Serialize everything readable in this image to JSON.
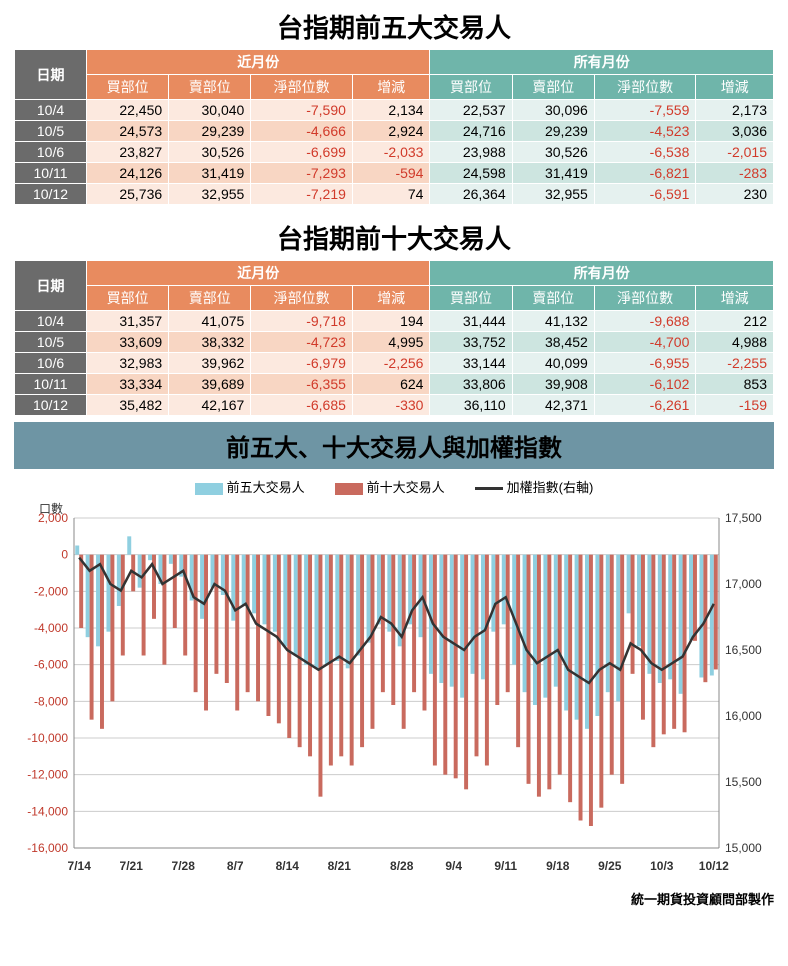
{
  "titles": {
    "t5": "台指期前五大交易人",
    "t10": "台指期前十大交易人",
    "chart": "前五大、十大交易人與加權指數",
    "footer": "統一期貨投資顧問部製作"
  },
  "headers": {
    "date": "日期",
    "near": "近月份",
    "all": "所有月份",
    "buy": "買部位",
    "sell": "賣部位",
    "net": "淨部位數",
    "chg": "增減"
  },
  "table5": [
    {
      "date": "10/4",
      "n": [
        22450,
        30040,
        -7590,
        2134
      ],
      "a": [
        22537,
        30096,
        -7559,
        2173
      ]
    },
    {
      "date": "10/5",
      "n": [
        24573,
        29239,
        -4666,
        2924
      ],
      "a": [
        24716,
        29239,
        -4523,
        3036
      ]
    },
    {
      "date": "10/6",
      "n": [
        23827,
        30526,
        -6699,
        -2033
      ],
      "a": [
        23988,
        30526,
        -6538,
        -2015
      ]
    },
    {
      "date": "10/11",
      "n": [
        24126,
        31419,
        -7293,
        -594
      ],
      "a": [
        24598,
        31419,
        -6821,
        -283
      ]
    },
    {
      "date": "10/12",
      "n": [
        25736,
        32955,
        -7219,
        74
      ],
      "a": [
        26364,
        32955,
        -6591,
        230
      ]
    }
  ],
  "table10": [
    {
      "date": "10/4",
      "n": [
        31357,
        41075,
        -9718,
        194
      ],
      "a": [
        31444,
        41132,
        -9688,
        212
      ]
    },
    {
      "date": "10/5",
      "n": [
        33609,
        38332,
        -4723,
        4995
      ],
      "a": [
        33752,
        38452,
        -4700,
        4988
      ]
    },
    {
      "date": "10/6",
      "n": [
        32983,
        39962,
        -6979,
        -2256
      ],
      "a": [
        33144,
        40099,
        -6955,
        -2255
      ]
    },
    {
      "date": "10/11",
      "n": [
        33334,
        39689,
        -6355,
        624
      ],
      "a": [
        33806,
        39908,
        -6102,
        853
      ]
    },
    {
      "date": "10/12",
      "n": [
        35482,
        42167,
        -6685,
        -330
      ],
      "a": [
        36110,
        42371,
        -6261,
        -159
      ]
    }
  ],
  "chart": {
    "ylabel": "口數",
    "legend": {
      "s5": "前五大交易人",
      "s10": "前十大交易人",
      "idx": "加權指數(右軸)"
    },
    "colors": {
      "s5": "#8fcfe0",
      "s10": "#c96a5e",
      "idx": "#333333",
      "grid": "#cccccc",
      "axis": "#888888",
      "leftTick": "#c0392b",
      "bg": "#ffffff"
    },
    "yleft": {
      "min": -16000,
      "max": 2000,
      "step": 2000
    },
    "yright": {
      "min": 15000,
      "max": 17500,
      "step": 500
    },
    "xlabels": [
      "7/14",
      "7/21",
      "7/28",
      "8/7",
      "8/14",
      "8/21",
      "8/28",
      "9/4",
      "9/11",
      "9/18",
      "9/25",
      "10/3",
      "10/12"
    ],
    "n": 62,
    "s5": [
      500,
      -4500,
      -5000,
      -4200,
      -2800,
      1000,
      -1800,
      -300,
      -1600,
      -500,
      -1200,
      -2500,
      -3500,
      -1800,
      -2200,
      -3600,
      -2800,
      -3200,
      -3800,
      -4200,
      -5000,
      -5500,
      -6000,
      -6200,
      -6000,
      -5800,
      -6200,
      -5500,
      -4800,
      -3800,
      -4200,
      -5000,
      -3800,
      -4500,
      -6500,
      -7000,
      -7200,
      -7800,
      -6500,
      -6800,
      -4200,
      -3800,
      -6000,
      -7500,
      -8200,
      -7800,
      -7200,
      -8500,
      -9000,
      -9500,
      -8800,
      -7500,
      -8000,
      -3200,
      -5000,
      -6500,
      -7000,
      -6800,
      -7590,
      -4666,
      -6699,
      -6591
    ],
    "s10": [
      -4000,
      -9000,
      -9500,
      -8000,
      -5500,
      -2000,
      -5500,
      -3500,
      -6000,
      -4000,
      -5500,
      -7500,
      -8500,
      -6500,
      -7000,
      -8500,
      -7500,
      -8000,
      -8800,
      -9200,
      -10000,
      -10500,
      -11000,
      -13200,
      -11500,
      -11000,
      -11500,
      -10500,
      -9500,
      -7500,
      -8200,
      -9500,
      -7500,
      -8500,
      -11500,
      -12000,
      -12200,
      -12800,
      -11000,
      -11500,
      -8200,
      -7500,
      -10500,
      -12500,
      -13200,
      -12800,
      -12000,
      -13500,
      -14500,
      -14800,
      -13800,
      -12000,
      -12500,
      -6500,
      -9000,
      -10500,
      -9800,
      -9500,
      -9688,
      -4700,
      -6955,
      -6261
    ],
    "idx": [
      17200,
      17100,
      17150,
      17000,
      16950,
      17100,
      17050,
      17150,
      17000,
      17050,
      17100,
      16900,
      16850,
      17000,
      16950,
      16800,
      16850,
      16700,
      16650,
      16600,
      16500,
      16450,
      16400,
      16350,
      16400,
      16450,
      16400,
      16500,
      16600,
      16750,
      16700,
      16600,
      16800,
      16900,
      16700,
      16600,
      16550,
      16500,
      16600,
      16650,
      16850,
      16900,
      16700,
      16500,
      16400,
      16450,
      16500,
      16350,
      16300,
      16250,
      16350,
      16400,
      16350,
      16550,
      16500,
      16400,
      16350,
      16400,
      16450,
      16600,
      16700,
      16850
    ]
  }
}
